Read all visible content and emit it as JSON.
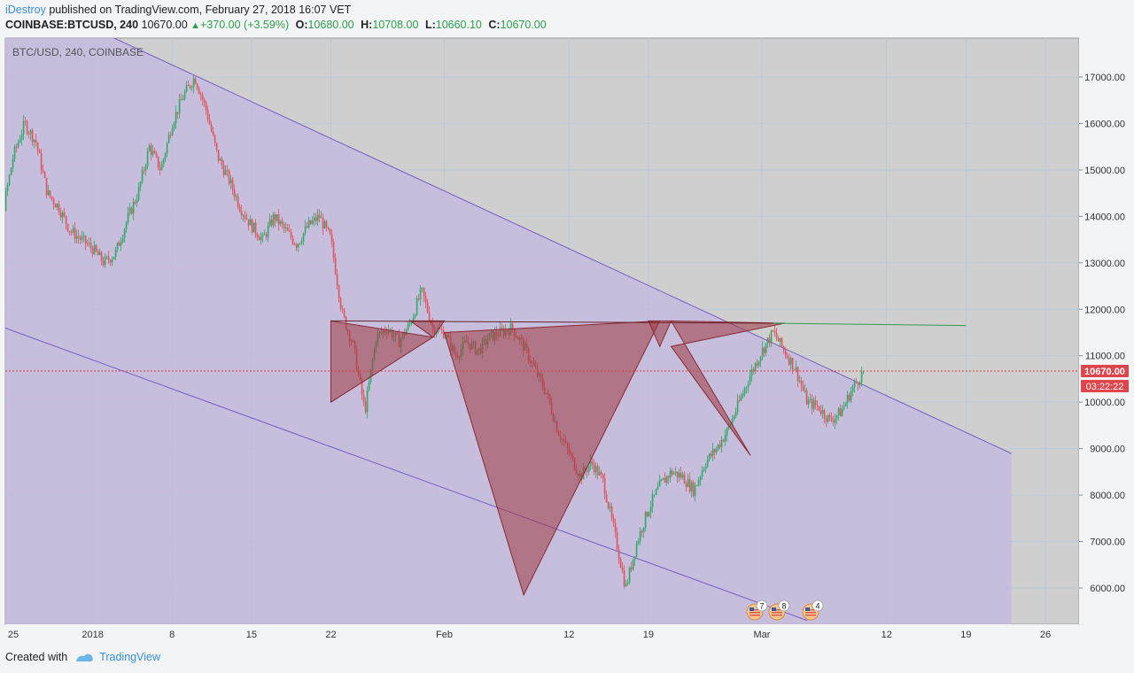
{
  "header": {
    "author": "iDestroy",
    "published_text": "published on TradingView.com, February 27, 2018 16:07 VET",
    "symbol": "COINBASE:BTCUSD, 240",
    "last": "10670.00",
    "change": "+370.00 (+3.59%)",
    "open_label": "O:",
    "open": "10680.00",
    "high_label": "H:",
    "high": "10708.00",
    "low_label": "L:",
    "low": "10660.10",
    "close_label": "C:",
    "close": "10670.00"
  },
  "footer": {
    "created_with": "Created with",
    "brand": "TradingView"
  },
  "colors": {
    "up": "#2ea865",
    "down": "#e0535a",
    "channel_fill": "#c3b8e0",
    "channel_line": "#7a5cc4",
    "pattern_fill": "#9e3a44",
    "neckline": "#2e9e4f",
    "price_line": "#e23b3b",
    "bg": "#cfcfcf"
  },
  "chart_data": {
    "type": "candlestick",
    "title": "BTC/USD, 240, COINBASE",
    "ylim": [
      5200,
      17800
    ],
    "y_ticks": [
      6000,
      7000,
      8000,
      9000,
      10000,
      11000,
      12000,
      13000,
      14000,
      15000,
      16000,
      17000
    ],
    "y_tick_labels": [
      "6000.00",
      "7000.00",
      "8000.00",
      "9000.00",
      "10000.00",
      "11000.00",
      "12000.00",
      "13000.00",
      "14000.00",
      "15000.00",
      "16000.00",
      "17000.00"
    ],
    "x_ticks": [
      "2017-12-25",
      "2018-01-01",
      "2018-01-08",
      "2018-01-15",
      "2018-01-22",
      "2018-02-01",
      "2018-02-12",
      "2018-02-19",
      "2018-03-01",
      "2018-03-12",
      "2018-03-19",
      "2018-03-26"
    ],
    "x_tick_labels": [
      "25",
      "2018",
      "8",
      "15",
      "22",
      "Feb",
      "12",
      "19",
      "Mar",
      "12",
      "19",
      "26"
    ],
    "current_price": 10670.0,
    "current_price_label": "10670.00",
    "countdown_label": "03:22:22",
    "grid": true,
    "price_path": [
      [
        "2017-12-22",
        13800
      ],
      [
        "2017-12-23",
        14300
      ],
      [
        "2017-12-24",
        14000
      ],
      [
        "2017-12-25",
        15300
      ],
      [
        "2017-12-26",
        16000
      ],
      [
        "2017-12-27",
        15600
      ],
      [
        "2017-12-28",
        14500
      ],
      [
        "2017-12-29",
        14200
      ],
      [
        "2017-12-30",
        13700
      ],
      [
        "2017-12-31",
        13500
      ],
      [
        "2018-01-01",
        13300
      ],
      [
        "2018-01-02",
        13000
      ],
      [
        "2018-01-03",
        13200
      ],
      [
        "2018-01-04",
        13900
      ],
      [
        "2018-01-05",
        14500
      ],
      [
        "2018-01-06",
        15500
      ],
      [
        "2018-01-07",
        15000
      ],
      [
        "2018-01-08",
        16000
      ],
      [
        "2018-01-09",
        16600
      ],
      [
        "2018-01-10",
        17000
      ],
      [
        "2018-01-11",
        16300
      ],
      [
        "2018-01-12",
        15300
      ],
      [
        "2018-01-13",
        14800
      ],
      [
        "2018-01-14",
        14200
      ],
      [
        "2018-01-15",
        13800
      ],
      [
        "2018-01-16",
        13500
      ],
      [
        "2018-01-17",
        14000
      ],
      [
        "2018-01-18",
        13700
      ],
      [
        "2018-01-19",
        13400
      ],
      [
        "2018-01-20",
        13800
      ],
      [
        "2018-01-21",
        14000
      ],
      [
        "2018-01-22",
        13500
      ],
      [
        "2018-01-23",
        11900
      ],
      [
        "2018-01-24",
        11200
      ],
      [
        "2018-01-25",
        9800
      ],
      [
        "2018-01-26",
        11400
      ],
      [
        "2018-01-27",
        11600
      ],
      [
        "2018-01-28",
        11300
      ],
      [
        "2018-01-29",
        11700
      ],
      [
        "2018-01-30",
        12400
      ],
      [
        "2018-01-31",
        11600
      ],
      [
        "2018-02-01",
        11500
      ],
      [
        "2018-02-02",
        11000
      ],
      [
        "2018-02-03",
        11300
      ],
      [
        "2018-02-04",
        11100
      ],
      [
        "2018-02-05",
        11400
      ],
      [
        "2018-02-06",
        11500
      ],
      [
        "2018-02-07",
        11600
      ],
      [
        "2018-02-08",
        11200
      ],
      [
        "2018-02-09",
        10700
      ],
      [
        "2018-02-10",
        10200
      ],
      [
        "2018-02-11",
        9400
      ],
      [
        "2018-02-12",
        8900
      ],
      [
        "2018-02-13",
        8400
      ],
      [
        "2018-02-14",
        8700
      ],
      [
        "2018-02-15",
        8300
      ],
      [
        "2018-02-16",
        7200
      ],
      [
        "2018-02-17",
        6000
      ],
      [
        "2018-02-18",
        7000
      ],
      [
        "2018-02-19",
        7700
      ],
      [
        "2018-02-20",
        8200
      ],
      [
        "2018-02-21",
        8500
      ],
      [
        "2018-02-22",
        8400
      ],
      [
        "2018-02-23",
        8100
      ],
      [
        "2018-02-24",
        8700
      ],
      [
        "2018-02-25",
        9000
      ],
      [
        "2018-02-26",
        9400
      ],
      [
        "2018-02-27",
        10000
      ],
      [
        "2018-02-28",
        10600
      ],
      [
        "2018-03-01",
        11100
      ],
      [
        "2018-03-02",
        11500
      ],
      [
        "2018-03-03",
        11100
      ],
      [
        "2018-03-04",
        10700
      ],
      [
        "2018-03-05",
        10000
      ],
      [
        "2018-03-06",
        9900
      ],
      [
        "2018-03-07",
        9600
      ],
      [
        "2018-03-08",
        9800
      ],
      [
        "2018-03-09",
        10300
      ],
      [
        "2018-03-10",
        10670
      ]
    ],
    "drawings": {
      "channel_top": [
        [
          "2018-01-05",
          17600
        ],
        [
          "2018-04-07",
          7200
        ]
      ],
      "channel_bottom": [
        [
          "2017-12-22",
          11800
        ],
        [
          "2018-03-05",
          5300
        ]
      ],
      "neckline": [
        [
          "2018-01-22",
          11750
        ],
        [
          "2018-03-19",
          11650
        ]
      ]
    },
    "events": [
      {
        "badge": "7"
      },
      {
        "badge": "8"
      },
      {
        "badge": "4"
      }
    ]
  }
}
